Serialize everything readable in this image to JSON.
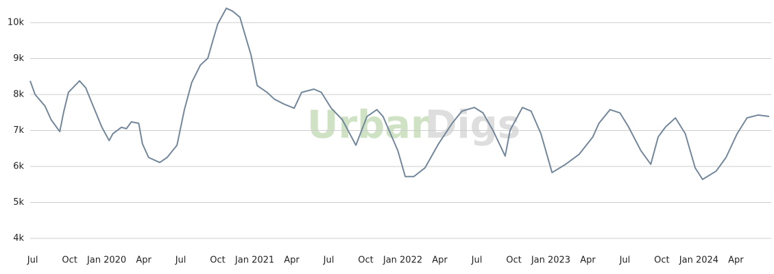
{
  "chart_data": {
    "type": "line",
    "watermark": [
      "Urban",
      "Digs"
    ],
    "x": [
      -0.2,
      0.2,
      1,
      1.5,
      2.2,
      2.5,
      2.9,
      3.8,
      4.3,
      4.8,
      5.6,
      6.2,
      6.5,
      7.2,
      7.6,
      8,
      8.6,
      8.9,
      9.4,
      10.3,
      10.9,
      11.7,
      12.3,
      12.9,
      13.6,
      14.2,
      14.6,
      15,
      15.7,
      16.2,
      16.8,
      17.2,
      17.7,
      18.2,
      19,
      19.6,
      20.4,
      21.2,
      21.8,
      22.8,
      23.4,
      24.2,
      25.1,
      26.2,
      27.1,
      27.9,
      28.4,
      29.6,
      30.2,
      30.9,
      31.8,
      32.9,
      34,
      34.8,
      35.8,
      36.5,
      37.3,
      38.3,
      38.7,
      39.7,
      40.4,
      41.2,
      42.1,
      43.2,
      44.3,
      45.4,
      45.9,
      46.8,
      47.6,
      48.3,
      49.3,
      50.1,
      50.7,
      51.3,
      52.1,
      52.9,
      53.7,
      54.3,
      55.4,
      56.2,
      57.1,
      57.9,
      58.8,
      59.7
    ],
    "series": [
      {
        "color": "#71869a",
        "values": [
          8380,
          8000,
          7680,
          7300,
          6970,
          7490,
          8060,
          8380,
          8190,
          7770,
          7100,
          6720,
          6910,
          7090,
          7050,
          7240,
          7200,
          6630,
          6250,
          6110,
          6250,
          6590,
          7580,
          8340,
          8820,
          9010,
          9490,
          9960,
          10400,
          10320,
          10150,
          9680,
          9100,
          8250,
          8060,
          7870,
          7730,
          7620,
          8060,
          8150,
          8060,
          7620,
          7300,
          6590,
          7390,
          7580,
          7390,
          6440,
          5720,
          5720,
          5960,
          6630,
          7200,
          7540,
          7640,
          7490,
          7010,
          6290,
          7010,
          7640,
          7540,
          6910,
          5830,
          6060,
          6340,
          6820,
          7200,
          7580,
          7490,
          7100,
          6440,
          6060,
          6820,
          7100,
          7350,
          6910,
          5960,
          5640,
          5870,
          6250,
          6910,
          7350,
          7430,
          7390
        ]
      }
    ],
    "xlim": [
      -0.2,
      59.7
    ],
    "xticks": [
      {
        "value": 0,
        "label": "Jul"
      },
      {
        "value": 3,
        "label": "Oct"
      },
      {
        "value": 6,
        "label": "Jan 2020"
      },
      {
        "value": 9,
        "label": "Apr"
      },
      {
        "value": 12,
        "label": "Jul"
      },
      {
        "value": 15,
        "label": "Oct"
      },
      {
        "value": 18,
        "label": "Jan 2021"
      },
      {
        "value": 21,
        "label": "Apr"
      },
      {
        "value": 24,
        "label": "Jul"
      },
      {
        "value": 27,
        "label": "Oct"
      },
      {
        "value": 30,
        "label": "Jan 2022"
      },
      {
        "value": 33,
        "label": "Apr"
      },
      {
        "value": 36,
        "label": "Jul"
      },
      {
        "value": 39,
        "label": "Oct"
      },
      {
        "value": 42,
        "label": "Jan 2023"
      },
      {
        "value": 45,
        "label": "Apr"
      },
      {
        "value": 48,
        "label": "Jul"
      },
      {
        "value": 51,
        "label": "Oct"
      },
      {
        "value": 54,
        "label": "Jan 2024"
      },
      {
        "value": 57,
        "label": "Apr"
      }
    ],
    "ylim": [
      3700,
      10500
    ],
    "yticks": [
      {
        "value": 4000,
        "label": "4k"
      },
      {
        "value": 5000,
        "label": "5k"
      },
      {
        "value": 6000,
        "label": "6k"
      },
      {
        "value": 7000,
        "label": "7k"
      },
      {
        "value": 8000,
        "label": "8k"
      },
      {
        "value": 9000,
        "label": "9k"
      },
      {
        "value": 10000,
        "label": "10k"
      }
    ],
    "grid": true
  }
}
